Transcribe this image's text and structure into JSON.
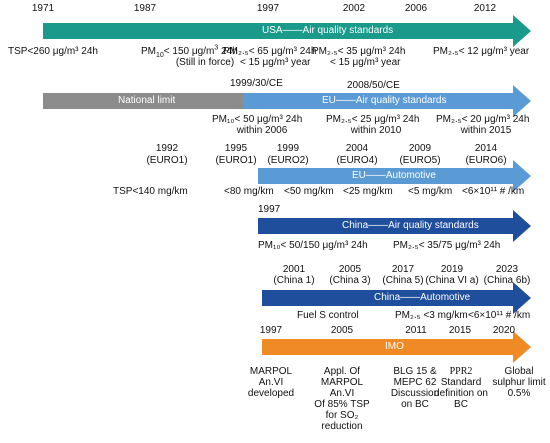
{
  "colors": {
    "usa": "#1a9a8a",
    "eu_gray": "#8c8c8c",
    "eu_blue": "#5b9bd5",
    "eu_auto": "#5b9bd5",
    "china_air": "#1f4e9c",
    "china_auto": "#1f4e9c",
    "imo": "#f08a24"
  },
  "usa": {
    "label": "USA——Air quality standards",
    "years": [
      "1971",
      "1987",
      "1997",
      "2002",
      "2006",
      "2012"
    ],
    "standards": {
      "tsp": "TSP<260 μg/m³ 24h",
      "pm10_a": "PM",
      "pm10_b": "10",
      "pm10_c": "< 150 μg/m",
      "pm10_d": "3",
      "pm10_e": " 24h",
      "pm10_note": "(Still in force)",
      "pm25_1997_line1": "PM₂.₅< 65 μg/m³ 24h",
      "pm25_1997_line2": "< 15 μg/m³ year",
      "pm25_2002_line1": "PM₂.₅< 35 μg/m³ 24h",
      "pm25_2002_line2": "< 15 μg/m³ year",
      "pm25_2012": "PM₂.₅< 12 μg/m³ year"
    }
  },
  "eu": {
    "national_label": "National limit",
    "label": "EU——Air quality standards",
    "directive1": "1999/30/CE",
    "directive2": "2008/50/CE",
    "std1_line1": "PM₁₀< 50 μg/m³ 24h",
    "std1_line2": "within 2006",
    "std2_line1": "PM₂.₅< 25 μg/m³ 24h",
    "std2_line2": "within 2010",
    "std3_line1": "PM₂.₅< 20 μg/m³ 24h",
    "std3_line2": "within 2015"
  },
  "eu_auto": {
    "label": "EU——Automotive",
    "years": [
      "1992",
      "1995",
      "1999",
      "2004",
      "2009",
      "2014"
    ],
    "stages": [
      "(EURO1)",
      "(EURO1)",
      "(EURO2)",
      "(EURO4)",
      "(EURO5)",
      "(EURO6)"
    ],
    "limits": [
      "TSP<140 mg/km",
      "<80 mg/km",
      "<50 mg/km",
      "<25 mg/km",
      "<5 mg/km",
      "<6×10¹¹ # /km"
    ]
  },
  "china_air": {
    "year": "1997",
    "label": "China——Air quality standards",
    "std1": "PM₁₀< 50/150 μg/m³ 24h",
    "std2": "PM₂.₅< 35/75 μg/m³ 24h"
  },
  "china_auto": {
    "label": "China——Automotive",
    "years": [
      "2001",
      "2005",
      "2017",
      "2019",
      "2023"
    ],
    "stages": [
      "(China 1)",
      "(China 3)",
      "(China 5)",
      "(China VI a)",
      "(China 6b)"
    ],
    "limits": [
      "Fuel S control",
      "PM₂.₅ <3 mg/km",
      "<6×10¹¹ # /km"
    ]
  },
  "imo": {
    "label": "IMO",
    "years": [
      "1997",
      "2005",
      "2011",
      "2015",
      "2020"
    ],
    "events": [
      [
        "MARPOL",
        "An.VI",
        "developed"
      ],
      [
        "Appl. Of",
        "MARPOL",
        "An.VI",
        "Of 85% TSP",
        "for SO₂",
        "reduction"
      ],
      [
        "BLG 15 &",
        "MEPC 62",
        "Discussion",
        "on BC"
      ],
      [
        "PPR2",
        "Standard",
        "definition on",
        "BC"
      ],
      [
        "Global",
        "sulphur limit",
        "0.5%"
      ]
    ]
  }
}
